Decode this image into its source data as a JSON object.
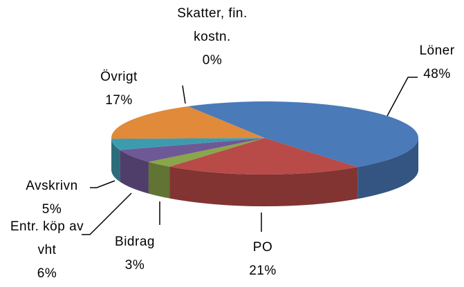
{
  "chart_data": {
    "type": "pie3d",
    "categories": [
      "Löner",
      "PO",
      "Bidrag",
      "Entr. köp av vht",
      "Avskrivn",
      "Övrigt",
      "Skatter, fin. kostn."
    ],
    "values": [
      48,
      21,
      3,
      6,
      5,
      17,
      0
    ],
    "value_labels": [
      "48%",
      "21%",
      "3%",
      "6%",
      "5%",
      "17%",
      "0%"
    ],
    "colors": [
      "#4a7ab8",
      "#b84a48",
      "#8aa64a",
      "#6f5896",
      "#3d9bb0",
      "#e08a3a",
      "#9fb8d8"
    ]
  }
}
